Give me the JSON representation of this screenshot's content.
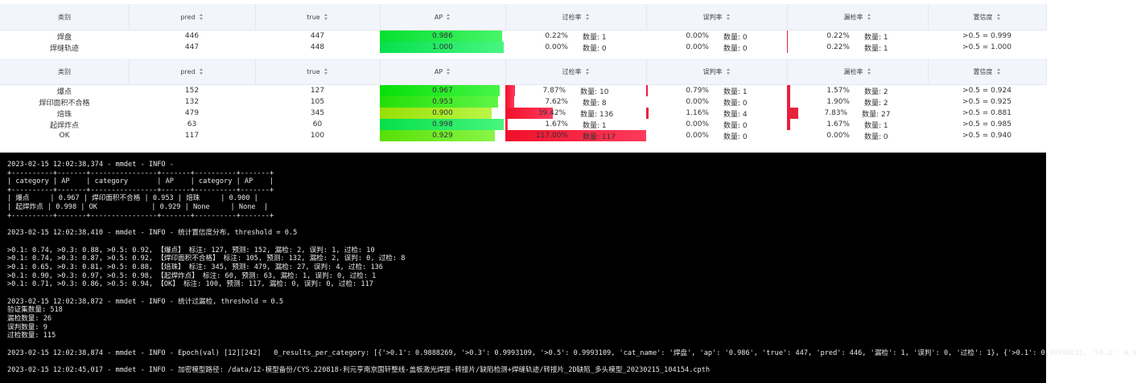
{
  "table1": {
    "headers": [
      "类别",
      "pred",
      "true",
      "AP",
      "过检率",
      "误判率",
      "漏检率",
      "置信度"
    ],
    "rows": [
      {
        "category": "焊盘",
        "pred": "446",
        "true": "447",
        "ap": "0.986",
        "over_rate": "0.22%",
        "over_count": "数量: 1",
        "mis_rate": "0.00%",
        "mis_count": "数量: 0",
        "miss_rate": "0.22%",
        "miss_count": "数量: 1",
        "conf": ">0.5 = 0.999"
      },
      {
        "category": "焊缝轨迹",
        "pred": "447",
        "true": "448",
        "ap": "1.000",
        "over_rate": "0.00%",
        "over_count": "数量: 0",
        "mis_rate": "0.00%",
        "mis_count": "数量: 0",
        "miss_rate": "0.22%",
        "miss_count": "数量: 1",
        "conf": ">0.5 = 1.000"
      }
    ]
  },
  "table2": {
    "headers": [
      "类别",
      "pred",
      "true",
      "AP",
      "过检率",
      "误判率",
      "漏检率",
      "置信度"
    ],
    "rows": [
      {
        "category": "爆点",
        "pred": "152",
        "true": "127",
        "ap": "0.967",
        "over_rate": "7.87%",
        "over_count": "数量: 10",
        "mis_rate": "0.79%",
        "mis_count": "数量: 1",
        "miss_rate": "1.57%",
        "miss_count": "数量: 2",
        "conf": ">0.5 = 0.924"
      },
      {
        "category": "焊印面积不合格",
        "pred": "132",
        "true": "105",
        "ap": "0.953",
        "over_rate": "7.62%",
        "over_count": "数量: 8",
        "mis_rate": "0.00%",
        "mis_count": "数量: 0",
        "miss_rate": "1.90%",
        "miss_count": "数量: 2",
        "conf": ">0.5 = 0.925"
      },
      {
        "category": "焙珠",
        "pred": "479",
        "true": "345",
        "ap": "0.900",
        "over_rate": "39.42%",
        "over_count": "数量: 136",
        "mis_rate": "1.16%",
        "mis_count": "数量: 4",
        "miss_rate": "7.83%",
        "miss_count": "数量: 27",
        "conf": ">0.5 = 0.881"
      },
      {
        "category": "起焊炸点",
        "pred": "63",
        "true": "60",
        "ap": "0.998",
        "over_rate": "1.67%",
        "over_count": "数量: 1",
        "mis_rate": "0.00%",
        "mis_count": "数量: 0",
        "miss_rate": "1.67%",
        "miss_count": "数量: 1",
        "conf": ">0.5 = 0.985"
      },
      {
        "category": "OK",
        "pred": "117",
        "true": "100",
        "ap": "0.929",
        "over_rate": "117.00%",
        "over_count": "数量: 117",
        "mis_rate": "0.00%",
        "mis_count": "数量: 0",
        "miss_rate": "0.00%",
        "miss_count": "数量: 0",
        "conf": ">0.5 = 0.940"
      }
    ]
  },
  "terminal": {
    "blocks": [
      [
        "2023-02-15 12:02:38,374 - mmdet - INFO -",
        "+----------+-------+----------------+-------+----------+-------+",
        "| category | AP    | category       | AP    | category | AP    |",
        "+----------+-------+----------------+-------+----------+-------+",
        "| 爆点     | 0.967 | 焊印面积不合格 | 0.953 | 焙珠     | 0.900 |",
        "| 起焊炸点 | 0.998 | OK             | 0.929 | None     | None  |",
        "+----------+-------+----------------+-------+----------+-------+"
      ],
      [
        "2023-02-15 12:02:38,410 - mmdet - INFO - 统计置信度分布, threshold = 0.5"
      ],
      [
        ">0.1: 0.74, >0.3: 0.88, >0.5: 0.92, 【爆点】 标注: 127, 预测: 152, 漏检: 2, 误判: 1, 过检: 10",
        ">0.1: 0.74, >0.3: 0.87, >0.5: 0.92, 【焊印面积不合格】 标注: 105, 预测: 132, 漏检: 2, 误判: 0, 过检: 8",
        ">0.1: 0.65, >0.3: 0.81, >0.5: 0.88, 【焙珠】 标注: 345, 预测: 479, 漏检: 27, 误判: 4, 过检: 136",
        ">0.1: 0.90, >0.3: 0.97, >0.5: 0.98, 【起焊炸点】 标注: 60, 预测: 63, 漏检: 1, 误判: 0, 过检: 1",
        ">0.1: 0.71, >0.3: 0.86, >0.5: 0.94, 【OK】 标注: 100, 预测: 117, 漏检: 0, 误判: 0, 过检: 117"
      ],
      [
        "2023-02-15 12:02:38,872 - mmdet - INFO - 统计过漏检, threshold = 0.5",
        "验证集数量: 518",
        "漏检数量: 26",
        "误判数量: 9",
        "过检数量: 115"
      ],
      [
        "2023-02-15 12:02:38,874 - mmdet - INFO - Epoch(val) [12][242]   0_results_per_category: [{'>0.1': 0.9888269, '>0.3': 0.9993109, '>0.5': 0.9993109, 'cat_name': '焊盘', 'ap': '0.986', 'true': 447, 'pred': 446, '漏检': 1, '误判': 0, '过检': 1}, {'>0.1': 0.99998033, '>0.3': 0.9"
      ],
      [
        "2023-02-15 12:02:45,017 - mmdet - INFO - 加密模型路径: /data/12-模型备份/CYS.220818-利元亨南京国轩整线-盖板激光焊接-转接片/缺陷检测+焊缝轨迹/转接片_2D缺陷_多头模型_20230215_104154.cpth"
      ]
    ]
  }
}
